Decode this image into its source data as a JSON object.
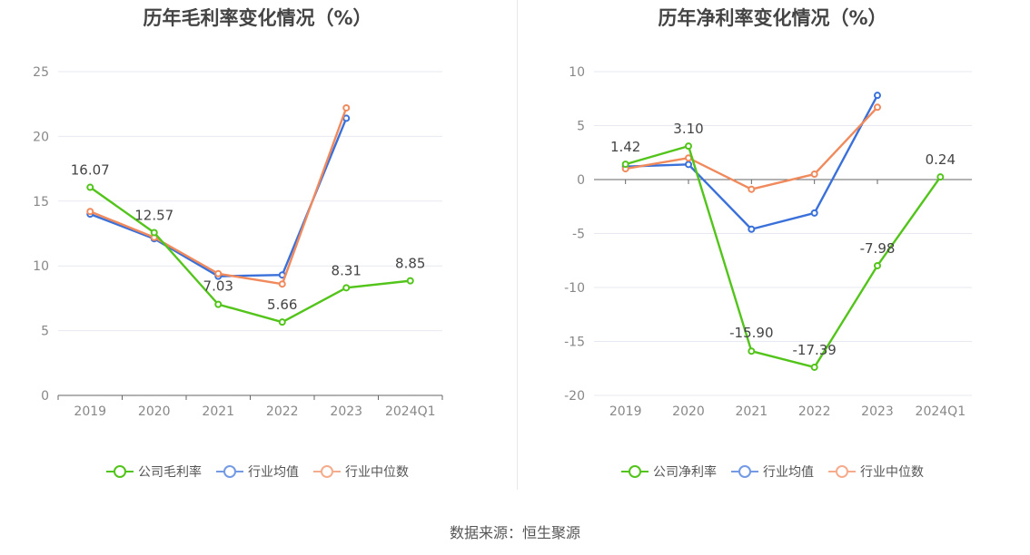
{
  "footer": {
    "source_text": "数据来源：恒生聚源"
  },
  "colors": {
    "company": "#52c41a",
    "industry_avg": "#3a70d9",
    "industry_median": "#f08a5d"
  },
  "chart_data": [
    {
      "type": "line",
      "title": "历年毛利率变化情况（%）",
      "categories": [
        "2019",
        "2020",
        "2021",
        "2022",
        "2023",
        "2024Q1"
      ],
      "ylim": [
        0,
        25
      ],
      "yticks": [
        0,
        5,
        10,
        15,
        20,
        25
      ],
      "grid": true,
      "legend_position": "bottom",
      "series": [
        {
          "name": "公司毛利率",
          "key": "company",
          "values": [
            16.07,
            12.57,
            7.03,
            5.66,
            8.31,
            8.85
          ],
          "labels": [
            "16.07",
            "12.57",
            "7.03",
            "5.66",
            "8.31",
            "8.85"
          ]
        },
        {
          "name": "行业均值",
          "key": "industry_avg",
          "values": [
            14.0,
            12.1,
            9.2,
            9.3,
            21.4,
            null
          ]
        },
        {
          "name": "行业中位数",
          "key": "industry_median",
          "values": [
            14.2,
            12.2,
            9.4,
            8.6,
            22.2,
            null
          ]
        }
      ]
    },
    {
      "type": "line",
      "title": "历年净利率变化情况（%）",
      "categories": [
        "2019",
        "2020",
        "2021",
        "2022",
        "2023",
        "2024Q1"
      ],
      "ylim": [
        -20,
        10
      ],
      "yticks": [
        -20,
        -15,
        -10,
        -5,
        0,
        5,
        10
      ],
      "grid": true,
      "legend_position": "bottom",
      "series": [
        {
          "name": "公司净利率",
          "key": "company",
          "values": [
            1.42,
            3.1,
            -15.9,
            -17.39,
            -7.98,
            0.24
          ],
          "labels": [
            "1.42",
            "3.10",
            "-15.90",
            "-17.39",
            "-7.98",
            "0.24"
          ]
        },
        {
          "name": "行业均值",
          "key": "industry_avg",
          "values": [
            1.2,
            1.4,
            -4.6,
            -3.1,
            7.8,
            null
          ]
        },
        {
          "name": "行业中位数",
          "key": "industry_median",
          "values": [
            1.0,
            2.0,
            -0.9,
            0.5,
            6.7,
            null
          ]
        }
      ]
    }
  ]
}
